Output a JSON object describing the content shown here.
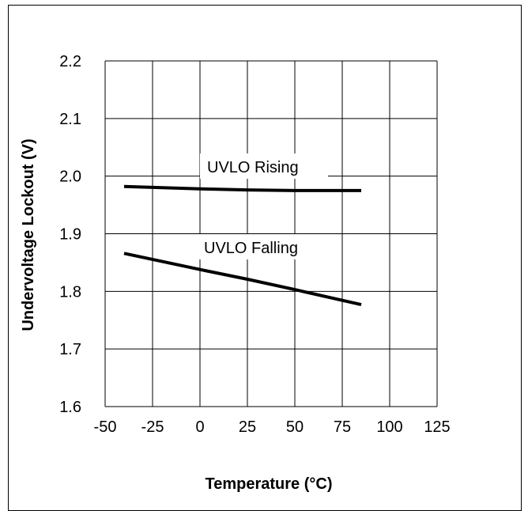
{
  "chart_data": {
    "type": "line",
    "title": "",
    "xlabel": "Temperature (°C)",
    "ylabel": "Undervoltage Lockout (V)",
    "xlim": [
      -50,
      125
    ],
    "ylim": [
      1.6,
      2.2
    ],
    "xticks": [
      -50,
      -25,
      0,
      25,
      50,
      75,
      100,
      125
    ],
    "yticks": [
      1.6,
      1.7,
      1.8,
      1.9,
      2.0,
      2.1,
      2.2
    ],
    "xtick_labels": [
      "-50",
      "-25",
      "0",
      "25",
      "50",
      "75",
      "100",
      "125"
    ],
    "ytick_labels": [
      "1.6",
      "1.7",
      "1.8",
      "1.9",
      "2.0",
      "2.1",
      "2.2"
    ],
    "grid": true,
    "legend": "none",
    "series": [
      {
        "name": "UVLO Rising",
        "x": [
          -40,
          0,
          25,
          50,
          85
        ],
        "y": [
          1.982,
          1.978,
          1.976,
          1.975,
          1.975
        ]
      },
      {
        "name": "UVLO Falling",
        "x": [
          -40,
          0,
          25,
          50,
          85
        ],
        "y": [
          1.866,
          1.838,
          1.821,
          1.803,
          1.777
        ]
      }
    ],
    "annotations": [
      {
        "text": "UVLO Rising",
        "series": "UVLO Rising"
      },
      {
        "text": "UVLO Falling",
        "series": "UVLO Falling"
      }
    ],
    "colors": {
      "line": "#000000",
      "grid": "#000000",
      "background": "#ffffff"
    }
  }
}
